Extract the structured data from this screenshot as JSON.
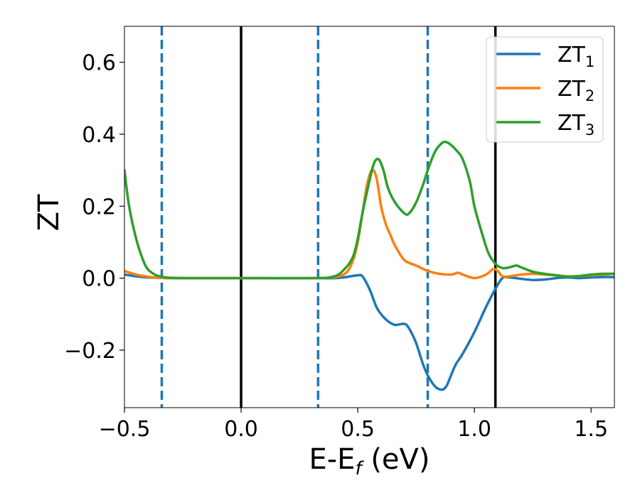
{
  "chart_data": {
    "type": "line",
    "xlabel": "E-E",
    "xlabel_sub": "f",
    "xlabel_unit": " (eV)",
    "ylabel": "ZT",
    "xlim": [
      -0.5,
      1.6
    ],
    "ylim": [
      -0.36,
      0.7
    ],
    "xticks": [
      -0.5,
      0.0,
      0.5,
      1.0,
      1.5
    ],
    "xtick_labels": [
      "−0.5",
      "0.0",
      "0.5",
      "1.0",
      "1.5"
    ],
    "yticks": [
      -0.2,
      0.0,
      0.2,
      0.4,
      0.6
    ],
    "ytick_labels": [
      "−0.2",
      "0.0",
      "0.2",
      "0.4",
      "0.6"
    ],
    "grid": false,
    "legend_position": "top-right",
    "vlines_dashed": [
      -0.34,
      0.33,
      0.8
    ],
    "vlines_solid": [
      0.0,
      1.09
    ],
    "dashed_color": "#1f77b4",
    "solid_color": "#000000",
    "series": [
      {
        "name": "ZT",
        "sub": "1",
        "color": "#1f77b4",
        "x": [
          -0.5,
          -0.45,
          -0.4,
          -0.35,
          -0.3,
          -0.2,
          0.0,
          0.2,
          0.3,
          0.4,
          0.45,
          0.5,
          0.52,
          0.55,
          0.58,
          0.6,
          0.63,
          0.66,
          0.7,
          0.72,
          0.75,
          0.78,
          0.8,
          0.83,
          0.86,
          0.88,
          0.9,
          0.92,
          0.95,
          1.0,
          1.05,
          1.09,
          1.12,
          1.15,
          1.2,
          1.25,
          1.3,
          1.35,
          1.4,
          1.45,
          1.5,
          1.55,
          1.6
        ],
        "values": [
          0.01,
          0.005,
          0.002,
          0.001,
          0.0,
          0.0,
          0.0,
          0.0,
          0.0,
          0.0,
          0.003,
          0.008,
          0.005,
          -0.03,
          -0.08,
          -0.1,
          -0.12,
          -0.13,
          -0.127,
          -0.14,
          -0.18,
          -0.24,
          -0.27,
          -0.3,
          -0.31,
          -0.3,
          -0.27,
          -0.24,
          -0.21,
          -0.15,
          -0.08,
          -0.03,
          0.0,
          0.002,
          -0.002,
          -0.005,
          -0.004,
          0.0,
          0.002,
          0.0,
          0.002,
          0.003,
          0.003
        ]
      },
      {
        "name": "ZT",
        "sub": "2",
        "color": "#ff7f0e",
        "x": [
          -0.5,
          -0.45,
          -0.4,
          -0.35,
          -0.3,
          -0.2,
          0.0,
          0.3,
          0.4,
          0.45,
          0.48,
          0.5,
          0.52,
          0.54,
          0.56,
          0.58,
          0.6,
          0.62,
          0.64,
          0.66,
          0.7,
          0.75,
          0.8,
          0.85,
          0.9,
          0.93,
          0.95,
          1.0,
          1.05,
          1.08,
          1.1,
          1.12,
          1.15,
          1.2,
          1.25,
          1.3,
          1.35,
          1.4,
          1.45,
          1.5,
          1.55,
          1.6
        ],
        "values": [
          0.02,
          0.01,
          0.004,
          0.001,
          0.0,
          0.0,
          0.0,
          0.0,
          0.003,
          0.015,
          0.05,
          0.1,
          0.18,
          0.26,
          0.3,
          0.28,
          0.2,
          0.15,
          0.12,
          0.09,
          0.05,
          0.035,
          0.02,
          0.012,
          0.01,
          0.015,
          0.01,
          0.0,
          0.01,
          0.025,
          0.02,
          0.005,
          0.005,
          0.01,
          0.012,
          0.01,
          0.008,
          0.005,
          0.006,
          0.008,
          0.01,
          0.012
        ]
      },
      {
        "name": "ZT",
        "sub": "3",
        "color": "#2ca02c",
        "x": [
          -0.5,
          -0.48,
          -0.45,
          -0.42,
          -0.4,
          -0.37,
          -0.34,
          -0.3,
          -0.2,
          0.0,
          0.3,
          0.4,
          0.45,
          0.48,
          0.5,
          0.52,
          0.55,
          0.57,
          0.59,
          0.61,
          0.63,
          0.66,
          0.7,
          0.72,
          0.75,
          0.78,
          0.8,
          0.83,
          0.86,
          0.88,
          0.9,
          0.93,
          0.95,
          0.98,
          1.0,
          1.03,
          1.06,
          1.09,
          1.12,
          1.15,
          1.18,
          1.2,
          1.25,
          1.3,
          1.35,
          1.4,
          1.45,
          1.5,
          1.55,
          1.6
        ],
        "values": [
          0.3,
          0.2,
          0.11,
          0.05,
          0.025,
          0.01,
          0.004,
          0.001,
          0.0,
          0.0,
          0.0,
          0.005,
          0.03,
          0.06,
          0.11,
          0.18,
          0.27,
          0.32,
          0.33,
          0.3,
          0.25,
          0.21,
          0.18,
          0.18,
          0.21,
          0.26,
          0.3,
          0.35,
          0.375,
          0.378,
          0.37,
          0.35,
          0.33,
          0.27,
          0.2,
          0.13,
          0.07,
          0.04,
          0.028,
          0.03,
          0.035,
          0.03,
          0.018,
          0.012,
          0.008,
          0.004,
          0.006,
          0.01,
          0.012,
          0.012
        ]
      }
    ]
  }
}
